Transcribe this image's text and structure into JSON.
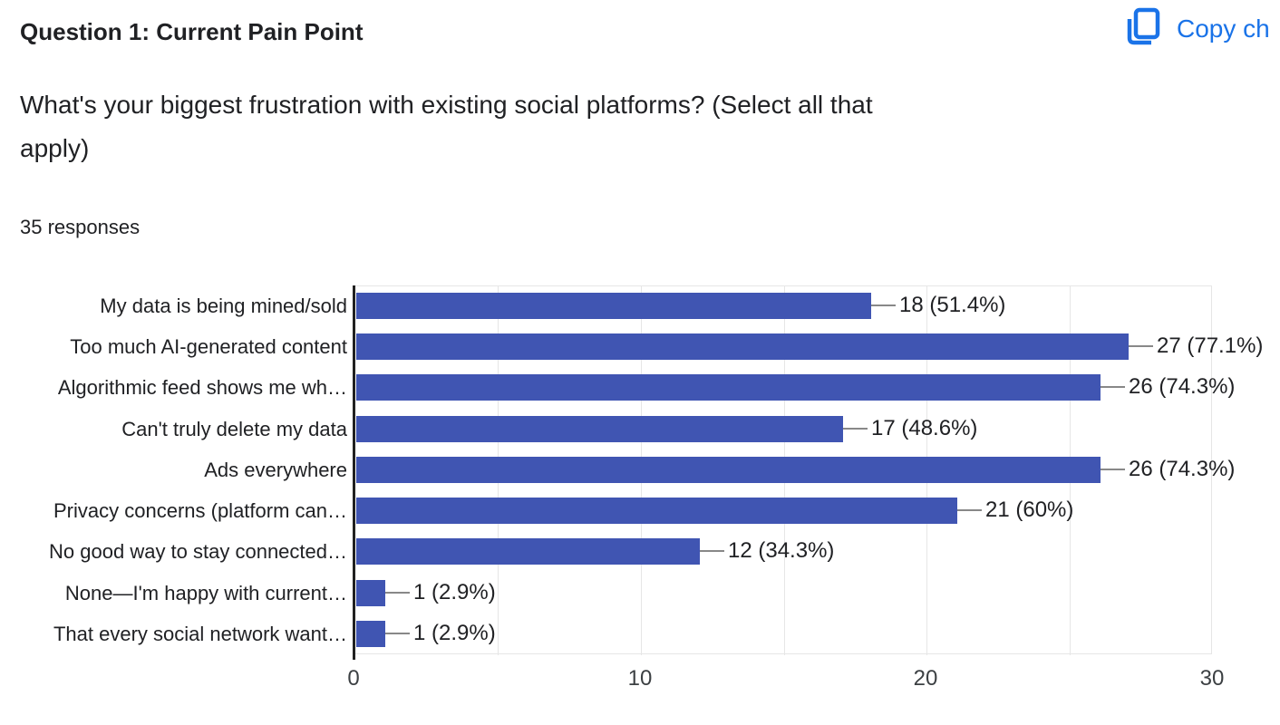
{
  "header": {
    "title": "Question 1: Current Pain Point",
    "copy_button_label": "Copy ch"
  },
  "question": {
    "text": "What's your biggest frustration with existing social platforms? (Select all that\napply)"
  },
  "responses_label": "35 responses",
  "colors": {
    "accent_blue": "#1a73e8",
    "bar_blue": "#4055b2",
    "axis_dark": "#212121",
    "grid_gray": "#e6e6e6",
    "connector_gray": "#888888",
    "text_dark": "#202124"
  },
  "chart_data": {
    "type": "bar",
    "orientation": "horizontal",
    "categories": [
      "My data is being mined/sold",
      "Too much AI-generated content",
      "Algorithmic feed shows me wh…",
      "Can't truly delete my data",
      "Ads everywhere",
      "Privacy concerns (platform can…",
      "No good way to stay connected…",
      "None—I'm happy with current…",
      "That every social network want…"
    ],
    "values": [
      18,
      27,
      26,
      17,
      26,
      21,
      12,
      1,
      1
    ],
    "value_labels": [
      "18 (51.4%)",
      "27 (77.1%)",
      "26 (74.3%)",
      "17 (48.6%)",
      "26 (74.3%)",
      "21 (60%)",
      "12 (34.3%)",
      "1 (2.9%)",
      "1 (2.9%)"
    ],
    "x_ticks": [
      0,
      10,
      20,
      30
    ],
    "xlim": [
      0,
      30
    ],
    "grid_interval": 5,
    "grid": true,
    "legend_position": "none",
    "xlabel": "",
    "ylabel": ""
  }
}
